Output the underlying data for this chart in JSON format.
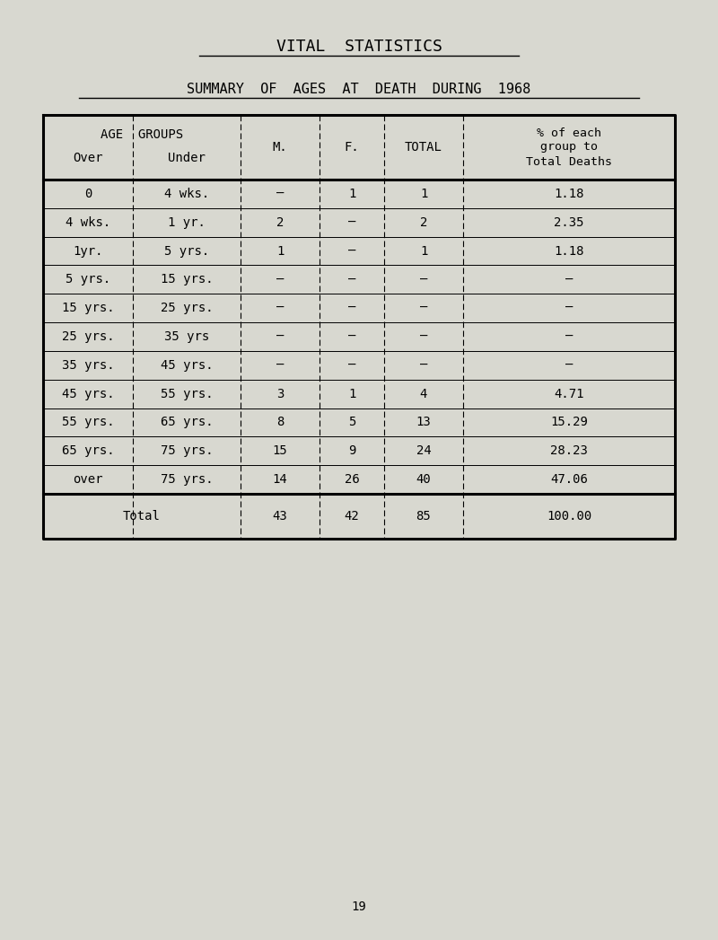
{
  "title1": "VITAL  STATISTICS",
  "title2": "SUMMARY  OF  AGES  AT  DEATH  DURING  1968",
  "bg_color": "#d8d8d0",
  "table_bg": "#d8d8d0",
  "header_age_groups": "AGE  GROUPS",
  "header_over": "Over",
  "header_under": "Under",
  "header_m": "M.",
  "header_f": "F.",
  "header_total": "TOTAL",
  "header_pct1": "% of each",
  "header_pct2": "group to",
  "header_pct3": "Total Deaths",
  "rows": [
    {
      "over": "0",
      "under": "4 wks.",
      "m": "–",
      "f": "1",
      "total": "1",
      "pct": "1.18"
    },
    {
      "over": "4 wks.",
      "under": "1 yr.",
      "m": "2",
      "f": "–",
      "total": "2",
      "pct": "2.35"
    },
    {
      "over": "1yr.",
      "under": "5 yrs.",
      "m": "1",
      "f": "–",
      "total": "1",
      "pct": "1.18"
    },
    {
      "over": "5 yrs.",
      "under": "15 yrs.",
      "m": "–",
      "f": "–",
      "total": "–",
      "pct": "–"
    },
    {
      "over": "15 yrs.",
      "under": "25 yrs.",
      "m": "–",
      "f": "–",
      "total": "–",
      "pct": "–"
    },
    {
      "over": "25 yrs.",
      "under": "35 yrs",
      "m": "–",
      "f": "–",
      "total": "–",
      "pct": "–"
    },
    {
      "over": "35 yrs.",
      "under": "45 yrs.",
      "m": "–",
      "f": "–",
      "total": "–",
      "pct": "–"
    },
    {
      "over": "45 yrs.",
      "under": "55 yrs.",
      "m": "3",
      "f": "1",
      "total": "4",
      "pct": "4.71"
    },
    {
      "over": "55 yrs.",
      "under": "65 yrs.",
      "m": "8",
      "f": "5",
      "total": "13",
      "pct": "15.29"
    },
    {
      "over": "65 yrs.",
      "under": "75 yrs.",
      "m": "15",
      "f": "9",
      "total": "24",
      "pct": "28.23"
    },
    {
      "over": "over",
      "under": "75 yrs.",
      "m": "14",
      "f": "26",
      "total": "40",
      "pct": "47.06"
    }
  ],
  "total_label": "Total",
  "total_m": "43",
  "total_f": "42",
  "total_total": "85",
  "total_pct": "100.00",
  "page_number": "19"
}
